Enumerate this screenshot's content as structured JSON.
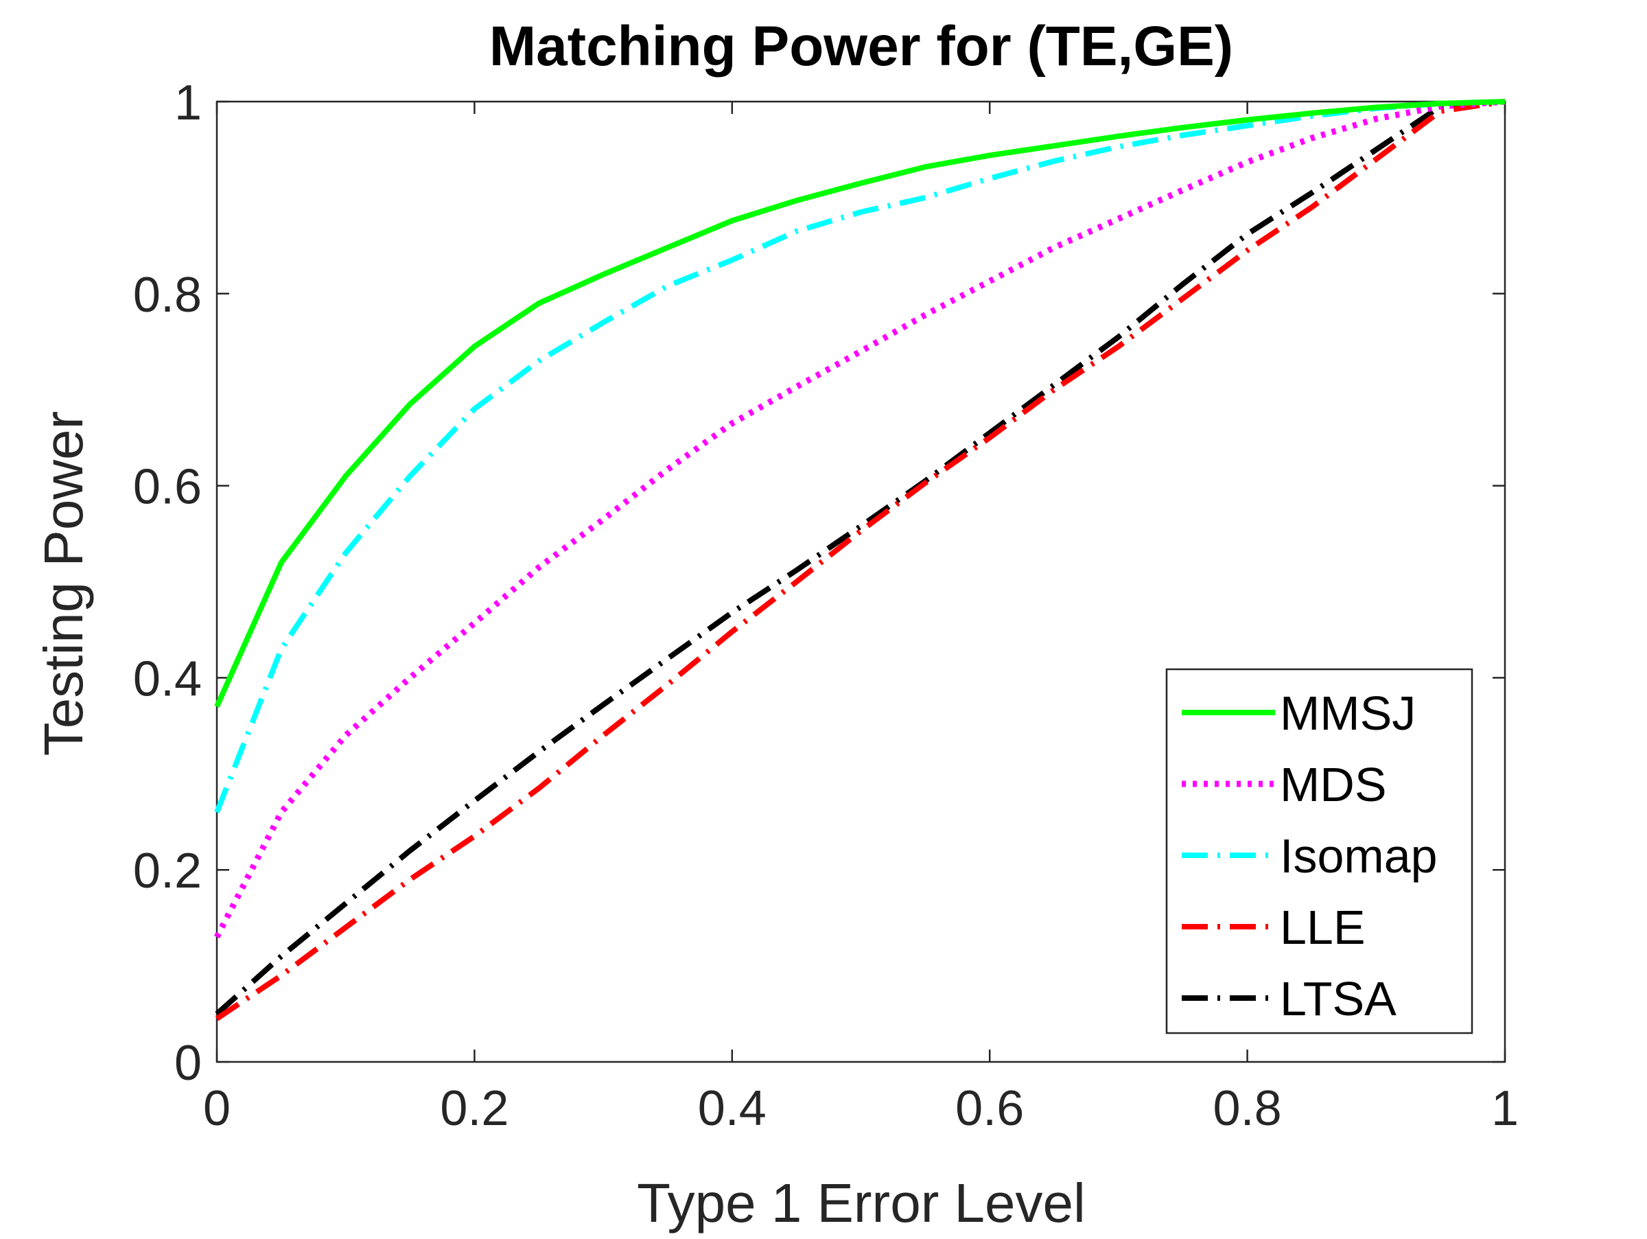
{
  "chart_data": {
    "type": "line",
    "title": "Matching Power for (TE,GE)",
    "xlabel": "Type 1 Error Level",
    "ylabel": "Testing Power",
    "xlim": [
      0,
      1
    ],
    "ylim": [
      0,
      1
    ],
    "xticks": [
      "0",
      "0.2",
      "0.4",
      "0.6",
      "0.8",
      "1"
    ],
    "yticks": [
      "0",
      "0.2",
      "0.4",
      "0.6",
      "0.8",
      "1"
    ],
    "grid": false,
    "legend_position": "bottom-right",
    "x": [
      0,
      0.05,
      0.1,
      0.15,
      0.2,
      0.25,
      0.3,
      0.35,
      0.4,
      0.45,
      0.5,
      0.55,
      0.6,
      0.65,
      0.7,
      0.75,
      0.8,
      0.85,
      0.9,
      0.95,
      1.0
    ],
    "series": [
      {
        "name": "MMSJ",
        "color": "#00ff00",
        "style": "solid",
        "values": [
          0.37,
          0.52,
          0.61,
          0.685,
          0.745,
          0.79,
          0.82,
          0.848,
          0.876,
          0.897,
          0.915,
          0.932,
          0.944,
          0.954,
          0.964,
          0.973,
          0.981,
          0.988,
          0.994,
          0.998,
          1.0
        ]
      },
      {
        "name": "MDS",
        "color": "#ff00ff",
        "style": "dotted",
        "values": [
          0.13,
          0.26,
          0.34,
          0.4,
          0.457,
          0.515,
          0.565,
          0.617,
          0.665,
          0.703,
          0.74,
          0.778,
          0.813,
          0.848,
          0.878,
          0.908,
          0.937,
          0.962,
          0.982,
          0.995,
          1.0
        ]
      },
      {
        "name": "Isomap",
        "color": "#00ffff",
        "style": "dashdot",
        "values": [
          0.26,
          0.43,
          0.53,
          0.61,
          0.68,
          0.73,
          0.77,
          0.808,
          0.835,
          0.865,
          0.885,
          0.9,
          0.92,
          0.938,
          0.953,
          0.965,
          0.975,
          0.985,
          0.993,
          0.998,
          1.0
        ]
      },
      {
        "name": "LLE",
        "color": "#ff0000",
        "style": "dashdot",
        "values": [
          0.045,
          0.09,
          0.14,
          0.19,
          0.235,
          0.285,
          0.34,
          0.393,
          0.448,
          0.5,
          0.553,
          0.603,
          0.65,
          0.7,
          0.745,
          0.795,
          0.845,
          0.89,
          0.94,
          0.99,
          1.0
        ]
      },
      {
        "name": "LTSA",
        "color": "#000000",
        "style": "dashdot",
        "values": [
          0.05,
          0.11,
          0.165,
          0.22,
          0.272,
          0.323,
          0.372,
          0.42,
          0.468,
          0.512,
          0.558,
          0.605,
          0.655,
          0.705,
          0.755,
          0.81,
          0.862,
          0.905,
          0.95,
          0.995,
          1.0
        ]
      }
    ]
  }
}
